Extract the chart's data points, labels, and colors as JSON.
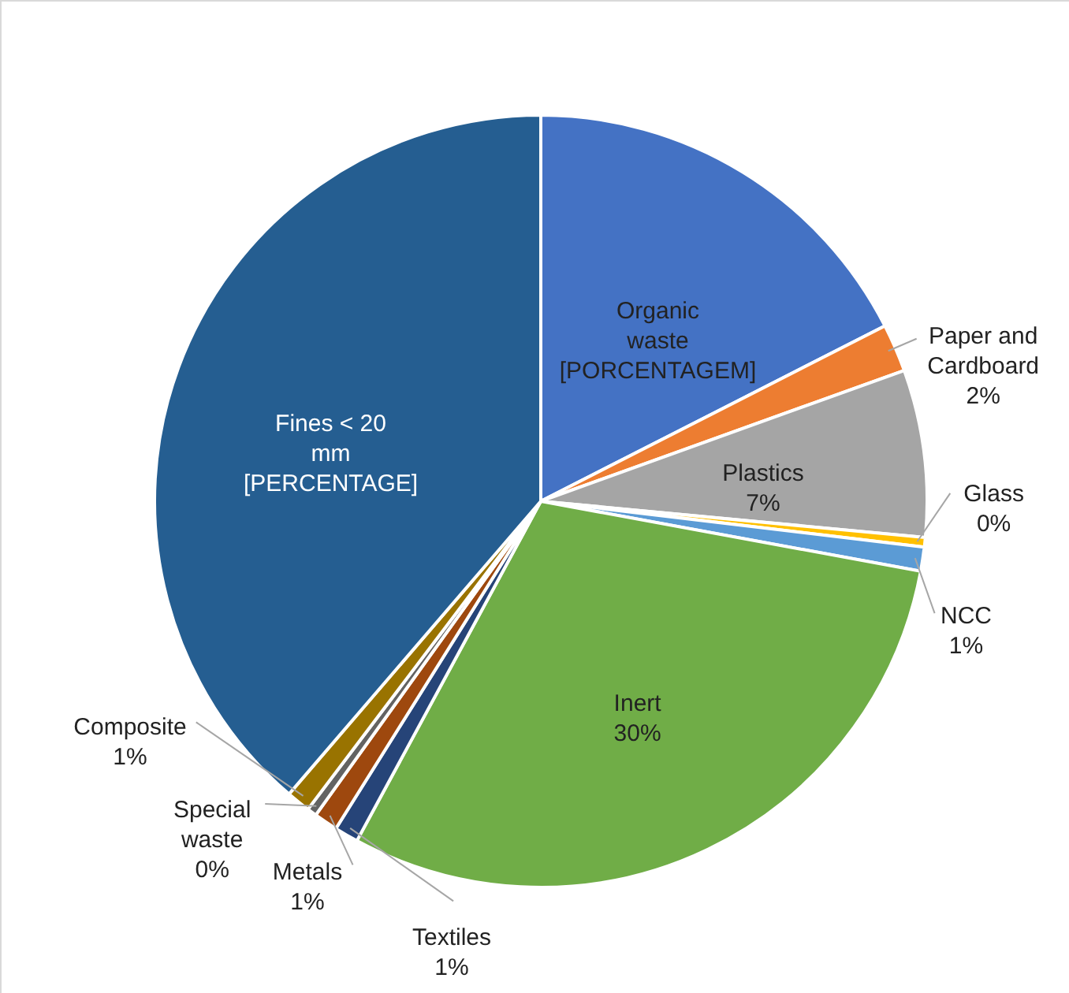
{
  "chart_data": {
    "type": "pie",
    "categories": [
      "Organic waste",
      "Paper and Cardboard",
      "Plastics",
      "Glass",
      "NCC",
      "Inert",
      "Textiles",
      "Metals",
      "Special waste",
      "Composite",
      "Fines < 20 mm"
    ],
    "values": [
      17.5,
      2,
      7,
      0.4,
      1,
      30,
      1,
      1,
      0.4,
      1,
      38.7
    ],
    "value_labels": [
      "[PORCENTAGEM]",
      "2%",
      "7%",
      "0%",
      "1%",
      "30%",
      "1%",
      "1%",
      "0%",
      "1%",
      "[PERCENTAGE]"
    ],
    "colors": [
      "#4472c4",
      "#ed7d31",
      "#a5a5a5",
      "#ffc000",
      "#5b9bd5",
      "#70ad47",
      "#264478",
      "#9e480e",
      "#636363",
      "#997300",
      "#255e91"
    ]
  }
}
